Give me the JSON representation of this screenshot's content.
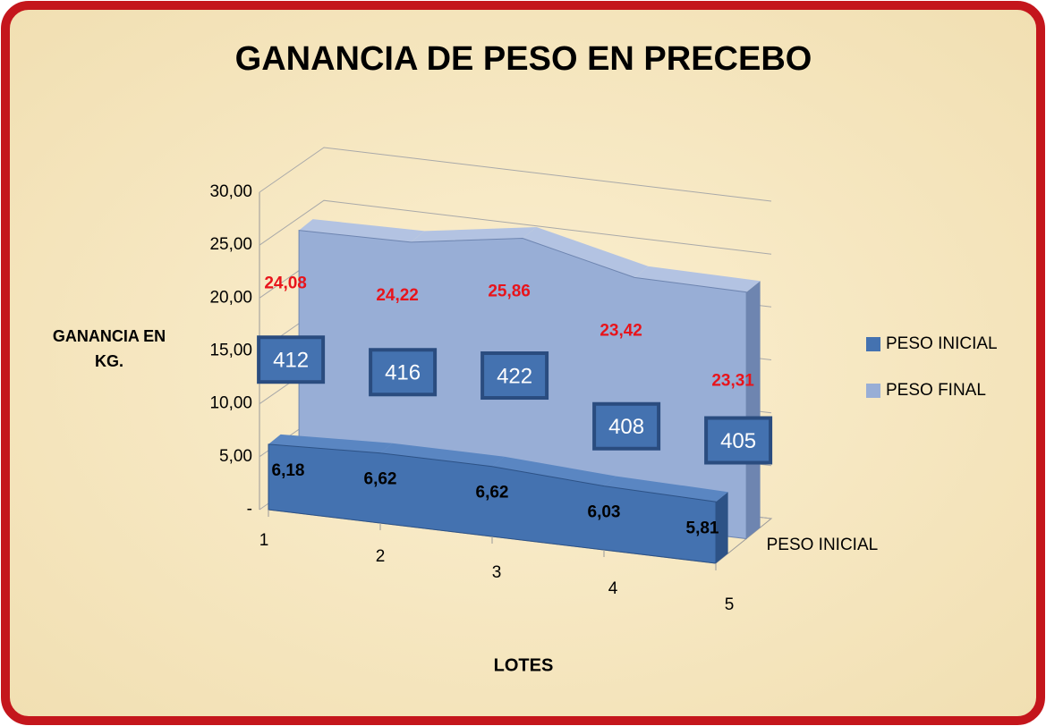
{
  "chart_data": {
    "type": "area3d",
    "title": "GANANCIA DE PESO EN PRECEBO",
    "ylabel": "GANANCIA EN KG.",
    "xlabel": "LOTES",
    "categories": [
      "1",
      "2",
      "3",
      "4",
      "5"
    ],
    "series": [
      {
        "name": "PESO INICIAL",
        "color": "#4472b0",
        "values": [
          6.18,
          6.62,
          6.62,
          6.03,
          5.81
        ],
        "value_labels": [
          "6,18",
          "6,62",
          "6,62",
          "6,03",
          "5,81"
        ]
      },
      {
        "name": "PESO FINAL",
        "color": "#98aed6",
        "values": [
          24.08,
          24.22,
          25.86,
          23.42,
          23.31
        ],
        "value_labels": [
          "24,08",
          "24,22",
          "25,86",
          "23,42",
          "23,31"
        ]
      }
    ],
    "box_labels": [
      "412",
      "416",
      "422",
      "408",
      "405"
    ],
    "depth_labels": [
      "PESO INICIAL"
    ],
    "ylim": [
      0,
      30
    ],
    "yticks": [
      {
        "value": 0,
        "label": "-"
      },
      {
        "value": 5,
        "label": "5,00"
      },
      {
        "value": 10,
        "label": "10,00"
      },
      {
        "value": 15,
        "label": "15,00"
      },
      {
        "value": 20,
        "label": "20,00"
      },
      {
        "value": 25,
        "label": "25,00"
      },
      {
        "value": 30,
        "label": "30,00"
      }
    ],
    "grid": true,
    "legend": "right"
  }
}
